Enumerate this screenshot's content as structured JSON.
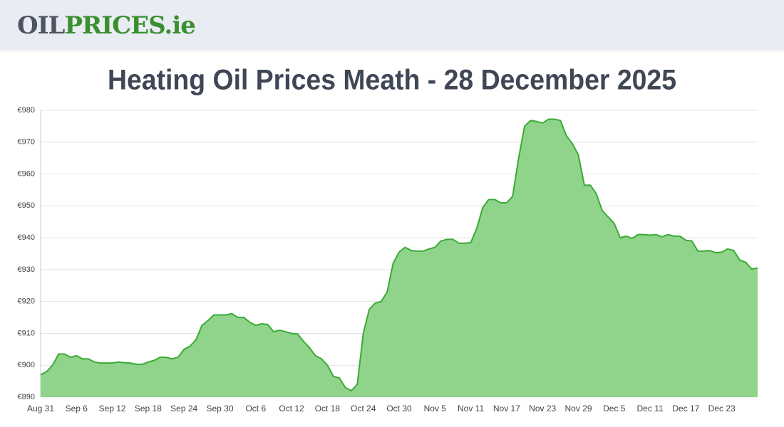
{
  "header": {
    "logo_part1": "OIL",
    "logo_part2": "PRICES.ie"
  },
  "chart_data": {
    "type": "area",
    "title": "Heating Oil Prices Meath - 28 December 2025",
    "categories": [
      "Aug 31",
      null,
      null,
      null,
      null,
      null,
      "Sep 6",
      null,
      null,
      null,
      null,
      null,
      "Sep 12",
      null,
      null,
      null,
      null,
      null,
      "Sep 18",
      null,
      null,
      null,
      null,
      null,
      "Sep 24",
      null,
      null,
      null,
      null,
      null,
      "Sep 30",
      null,
      null,
      null,
      null,
      null,
      "Oct 6",
      null,
      null,
      null,
      null,
      null,
      "Oct 12",
      null,
      null,
      null,
      null,
      null,
      "Oct 18",
      null,
      null,
      null,
      null,
      null,
      "Oct 24",
      null,
      null,
      null,
      null,
      null,
      "Oct 30",
      null,
      null,
      null,
      null,
      null,
      "Nov 5",
      null,
      null,
      null,
      null,
      null,
      "Nov 11",
      null,
      null,
      null,
      null,
      null,
      "Nov 17",
      null,
      null,
      null,
      null,
      null,
      "Nov 23",
      null,
      null,
      null,
      null,
      null,
      "Nov 29",
      null,
      null,
      null,
      null,
      null,
      "Dec 5",
      null,
      null,
      null,
      null,
      null,
      "Dec 11",
      null,
      null,
      null,
      null,
      null,
      "Dec 17",
      null,
      null,
      null,
      null,
      null,
      "Dec 23",
      null,
      null,
      null,
      null,
      null,
      null
    ],
    "values": [
      897,
      898,
      900,
      903.5,
      903.5,
      902.5,
      903,
      902,
      902,
      901,
      900.7,
      900.7,
      900.7,
      901,
      900.8,
      900.7,
      900.3,
      900.3,
      901,
      901.5,
      902.5,
      902.5,
      902,
      902.5,
      905,
      906,
      908,
      912.5,
      914,
      915.8,
      915.8,
      915.8,
      916.2,
      915,
      915,
      913.5,
      912.5,
      913,
      912.8,
      910.5,
      911,
      910.5,
      910,
      909.8,
      907.5,
      905.5,
      903,
      902,
      900,
      896.5,
      896,
      893,
      892,
      894,
      910,
      917.5,
      919.5,
      920,
      923,
      932,
      935.5,
      937,
      936,
      935.8,
      935.8,
      936.5,
      937,
      939,
      939.5,
      939.5,
      938.3,
      938.3,
      938.5,
      943,
      949.5,
      952,
      952,
      951,
      951,
      953,
      965,
      975,
      976.8,
      976.5,
      976,
      977.2,
      977.2,
      976.8,
      972,
      969.5,
      966,
      956.5,
      956.5,
      953.8,
      948.5,
      946.5,
      944.5,
      940,
      940.5,
      939.8,
      941,
      941,
      940.8,
      941,
      940.3,
      941,
      940.5,
      940.5,
      939.2,
      939,
      935.8,
      935.8,
      936,
      935.3,
      935.5,
      936.5,
      936,
      933,
      932.3,
      930.2,
      930.5
    ],
    "color": "#3aaa35",
    "fill": "#90d48c",
    "ylim": [
      890,
      980
    ],
    "yticks": [
      {
        "value": 890,
        "label": "€890"
      },
      {
        "value": 900,
        "label": "€900"
      },
      {
        "value": 910,
        "label": "€910"
      },
      {
        "value": 920,
        "label": "€920"
      },
      {
        "value": 930,
        "label": "€930"
      },
      {
        "value": 940,
        "label": "€940"
      },
      {
        "value": 950,
        "label": "€950"
      },
      {
        "value": 960,
        "label": "€960"
      },
      {
        "value": 970,
        "label": "€970"
      },
      {
        "value": 980,
        "label": "€980"
      }
    ],
    "grid": true
  }
}
